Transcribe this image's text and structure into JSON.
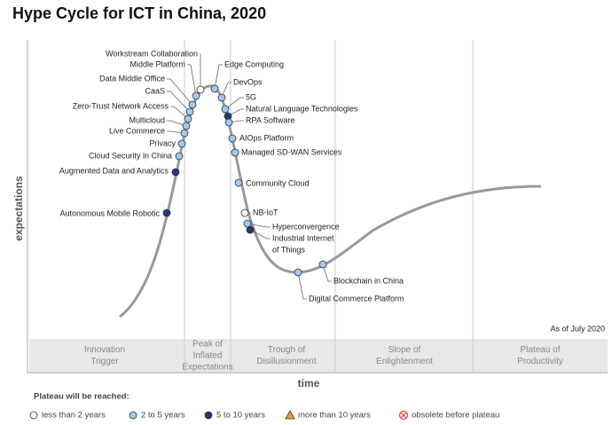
{
  "header": {
    "title": "Hype Cycle for ICT in China, 2020"
  },
  "axes": {
    "y": "expectations",
    "x": "time"
  },
  "note": "As of July 2020",
  "phases": [
    {
      "lines": [
        "Innovation",
        "Trigger"
      ]
    },
    {
      "lines": [
        "Peak of",
        "Inflated",
        "Expectations"
      ]
    },
    {
      "lines": [
        "Trough of",
        "Disillusionment"
      ]
    },
    {
      "lines": [
        "Slope of",
        "Enlightenment"
      ]
    },
    {
      "lines": [
        "Plateau of",
        "Productivity"
      ]
    }
  ],
  "nodes": [
    {
      "lines": [
        "Workstream Collaboration"
      ],
      "color": "#ffffff"
    },
    {
      "lines": [
        "Middle Platform"
      ],
      "color": "#9dc9ee"
    },
    {
      "lines": [
        "Data Middle Office"
      ],
      "color": "#9dc9ee"
    },
    {
      "lines": [
        "CaaS"
      ],
      "color": "#9dc9ee"
    },
    {
      "lines": [
        "Zero-Trust Network Access"
      ],
      "color": "#9dc9ee"
    },
    {
      "lines": [
        "Multicloud"
      ],
      "color": "#9dc9ee"
    },
    {
      "lines": [
        "Live Commerce"
      ],
      "color": "#9dc9ee"
    },
    {
      "lines": [
        "Privacy"
      ],
      "color": "#9dc9ee"
    },
    {
      "lines": [
        "Cloud Security in China"
      ],
      "color": "#9dc9ee"
    },
    {
      "lines": [
        "Augmented Data and Analytics"
      ],
      "color": "#1f3b7a"
    },
    {
      "lines": [
        "Autonomous Mobile Robotic"
      ],
      "color": "#1f3b7a"
    },
    {
      "lines": [
        "Edge Computing"
      ],
      "color": "#9dc9ee"
    },
    {
      "lines": [
        "DevOps"
      ],
      "color": "#9dc9ee"
    },
    {
      "lines": [
        "5G"
      ],
      "color": "#9dc9ee"
    },
    {
      "lines": [
        "Natural Language Technologies"
      ],
      "color": "#1f3b7a"
    },
    {
      "lines": [
        "RPA Software"
      ],
      "color": "#9dc9ee"
    },
    {
      "lines": [
        "AIOps Platform"
      ],
      "color": "#9dc9ee"
    },
    {
      "lines": [
        "Managed SD-WAN Services"
      ],
      "color": "#9dc9ee"
    },
    {
      "lines": [
        "Community Cloud"
      ],
      "color": "#9dc9ee"
    },
    {
      "lines": [
        "NB-IoT"
      ],
      "color": "#ffffff"
    },
    {
      "lines": [
        "Hyperconvergence"
      ],
      "color": "#9dc9ee"
    },
    {
      "lines": [
        "Industrial Internet",
        "of Things"
      ],
      "color": "#1f3b7a"
    },
    {
      "lines": [
        "Digital Commerce Platform"
      ],
      "color": "#9dc9ee"
    },
    {
      "lines": [
        "Blockchain in China"
      ],
      "color": "#9dc9ee"
    }
  ],
  "legend": {
    "title": "Plateau will be reached:",
    "items": [
      {
        "label": "less than 2 years",
        "color": "#ffffff"
      },
      {
        "label": "2 to 5 years",
        "color": "#9dc9ee"
      },
      {
        "label": "5 to 10 years",
        "color": "#1f3b7a"
      },
      {
        "label": "more than 10 years",
        "color": "#f0a030"
      },
      {
        "label": "obsolete before plateau",
        "color": "#e04040"
      }
    ]
  }
}
